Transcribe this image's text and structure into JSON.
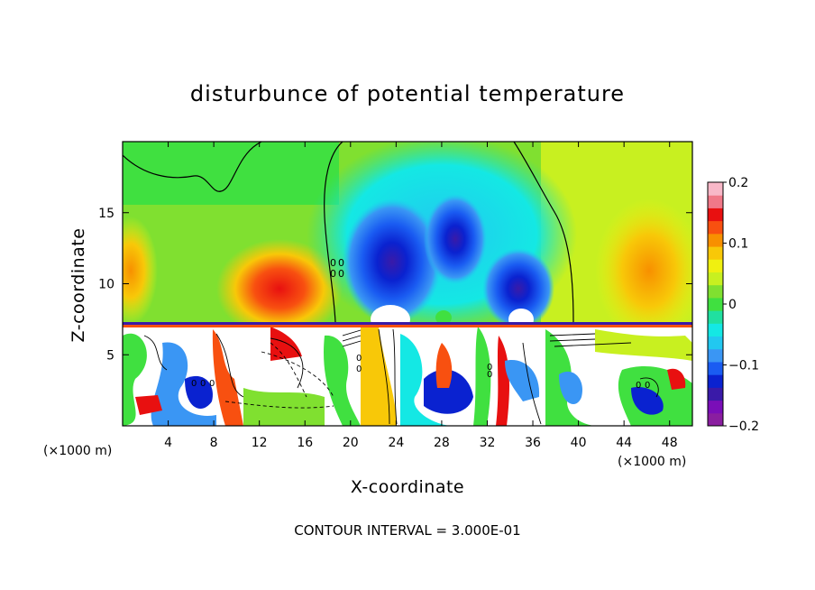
{
  "chart_data": {
    "type": "heatmap",
    "title": "disturbunce of potential temperature",
    "xlabel": "X-coordinate",
    "ylabel": "Z-coordinate",
    "x_unit": "(×1000 m)",
    "y_unit": "(×1000 m)",
    "xlim": [
      0,
      50
    ],
    "ylim": [
      0,
      20
    ],
    "x_ticks": [
      4,
      8,
      12,
      16,
      20,
      24,
      28,
      32,
      36,
      40,
      44,
      48
    ],
    "y_ticks": [
      5,
      10,
      15
    ],
    "colorbar": {
      "min": -0.2,
      "max": 0.2,
      "ticks": [
        0.2,
        0.1,
        0,
        -0.1,
        -0.2
      ],
      "tick_labels": [
        "0.2",
        "0.1",
        "0",
        "−0.1",
        "−0.2"
      ],
      "colors": [
        "#8a1ea0",
        "#7a0eb8",
        "#3a1aa8",
        "#0a22d0",
        "#1a5cf2",
        "#3a96f4",
        "#22c8f0",
        "#14e8e4",
        "#20e0a0",
        "#40e040",
        "#80e030",
        "#c8f020",
        "#f0f010",
        "#f8c808",
        "#f89000",
        "#f85010",
        "#e81010",
        "#f07888",
        "#f8b8c8"
      ]
    },
    "annotation": "CONTOUR INTERVAL = 3.000E-01",
    "field_summary": {
      "upper_layer_z": [
        7.3,
        20
      ],
      "lower_layer_z": [
        0,
        7.3
      ],
      "positive_max": {
        "x": 14,
        "z": 9.5,
        "value": 0.15
      },
      "negative_min": [
        {
          "x": 23,
          "z": 11,
          "value": -0.2
        },
        {
          "x": 34,
          "z": 10,
          "value": -0.2
        },
        {
          "x": 29,
          "z": 13.5,
          "value": -0.18
        }
      ]
    }
  }
}
